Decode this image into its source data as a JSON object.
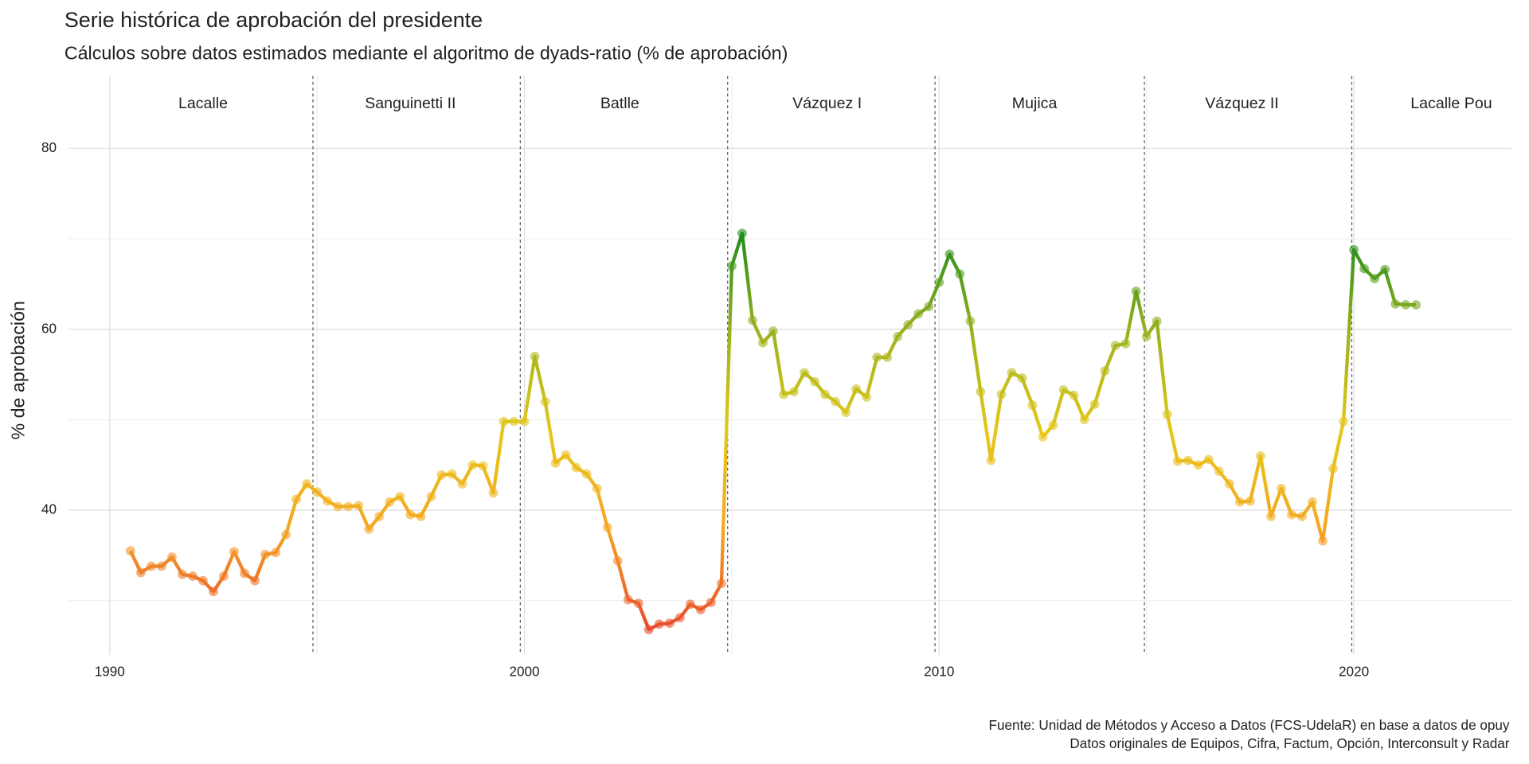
{
  "chart_data": {
    "type": "line",
    "title": "Serie histórica de aprobación del presidente",
    "subtitle": "Cálculos sobre datos estimados mediante el algoritmo de dyads-ratio (% de aprobación)",
    "y_label": "% de aprobación",
    "caption": [
      "Fuente: Unidad de Métodos y Acceso a Datos (FCS-UdelaR) en base a datos de opuy",
      "Datos originales de Equipos, Cifra, Factum, Opción, Interconsult y Radar"
    ],
    "x": [
      1990.5,
      1990.75,
      1991,
      1991.25,
      1991.5,
      1991.75,
      1992,
      1992.25,
      1992.5,
      1992.75,
      1993,
      1993.25,
      1993.5,
      1993.75,
      1994,
      1994.25,
      1994.5,
      1994.75,
      1995,
      1995.25,
      1995.5,
      1995.75,
      1996,
      1996.25,
      1996.5,
      1996.75,
      1997,
      1997.25,
      1997.5,
      1997.75,
      1998,
      1998.25,
      1998.5,
      1998.75,
      1999,
      1999.25,
      1999.5,
      1999.75,
      2000,
      2000.25,
      2000.5,
      2000.75,
      2001,
      2001.25,
      2001.5,
      2001.75,
      2002,
      2002.25,
      2002.5,
      2002.75,
      2003,
      2003.25,
      2003.5,
      2003.75,
      2004,
      2004.25,
      2004.5,
      2004.75,
      2005,
      2005.25,
      2005.5,
      2005.75,
      2006,
      2006.25,
      2006.5,
      2006.75,
      2007,
      2007.25,
      2007.5,
      2007.75,
      2008,
      2008.25,
      2008.5,
      2008.75,
      2009,
      2009.25,
      2009.5,
      2009.75,
      2010,
      2010.25,
      2010.5,
      2010.75,
      2011,
      2011.25,
      2011.5,
      2011.75,
      2012,
      2012.25,
      2012.5,
      2012.75,
      2013,
      2013.25,
      2013.5,
      2013.75,
      2014,
      2014.25,
      2014.5,
      2014.75,
      2015,
      2015.25,
      2015.5,
      2015.75,
      2016,
      2016.25,
      2016.5,
      2016.75,
      2017,
      2017.25,
      2017.5,
      2017.75,
      2018,
      2018.25,
      2018.5,
      2018.75,
      2019,
      2019.25,
      2019.5,
      2019.75,
      2020,
      2020.25,
      2020.5,
      2020.75,
      2021,
      2021.25,
      2021.5
    ],
    "values": [
      35.5,
      33.1,
      33.8,
      33.8,
      34.8,
      32.9,
      32.7,
      32.2,
      31.0,
      32.7,
      35.4,
      33.0,
      32.2,
      35.1,
      35.3,
      37.3,
      41.2,
      42.9,
      42.0,
      41.0,
      40.4,
      40.4,
      40.5,
      37.9,
      39.3,
      40.9,
      41.5,
      39.5,
      39.3,
      41.5,
      43.9,
      44.0,
      42.9,
      45.0,
      44.9,
      41.9,
      49.8,
      49.8,
      49.8,
      57.0,
      52.0,
      45.2,
      46.1,
      44.7,
      44.0,
      42.4,
      38.1,
      34.4,
      30.1,
      29.7,
      26.8,
      27.4,
      27.5,
      28.1,
      29.6,
      29.0,
      29.8,
      31.9,
      67.0,
      70.6,
      61.0,
      58.5,
      59.8,
      52.8,
      53.1,
      55.2,
      54.2,
      52.8,
      52.0,
      50.8,
      53.4,
      52.5,
      56.9,
      56.9,
      59.2,
      60.5,
      61.7,
      62.5,
      65.2,
      68.3,
      66.1,
      60.9,
      53.1,
      45.5,
      52.8,
      55.2,
      54.6,
      51.6,
      48.1,
      49.4,
      53.3,
      52.7,
      50.0,
      51.7,
      55.4,
      58.2,
      58.4,
      64.2,
      59.2,
      60.9,
      50.6,
      45.4,
      45.5,
      45.0,
      45.6,
      44.3,
      42.9,
      40.9,
      41.0,
      46.0,
      39.3,
      42.4,
      39.5,
      39.3,
      40.9,
      36.6,
      44.6,
      49.8,
      68.8,
      66.7,
      65.6,
      66.6,
      62.8,
      62.7,
      62.7
    ],
    "colors": [
      "#e8492c",
      "#f5a623",
      "#e6c81a",
      "#9cb21f",
      "#1e8c1e"
    ],
    "dividers": [
      1994.9,
      1999.9,
      2004.9,
      2009.9,
      2014.95,
      2019.95
    ],
    "periods": [
      {
        "label": "Lacalle",
        "x": 1992.25
      },
      {
        "label": "Sanguinetti II",
        "x": 1997.25
      },
      {
        "label": "Batlle",
        "x": 2002.3
      },
      {
        "label": "Vázquez I",
        "x": 2007.3
      },
      {
        "label": "Mujica",
        "x": 2012.3
      },
      {
        "label": "Vázquez II",
        "x": 2017.3
      },
      {
        "label": "Lacalle Pou",
        "x": 2022.35
      }
    ],
    "xlim": [
      1989,
      2023.8
    ],
    "xticks": [
      1990,
      2000,
      2010,
      2020
    ],
    "ylim": [
      24,
      88
    ],
    "yticks": [
      40,
      60,
      80
    ],
    "grid": true
  }
}
